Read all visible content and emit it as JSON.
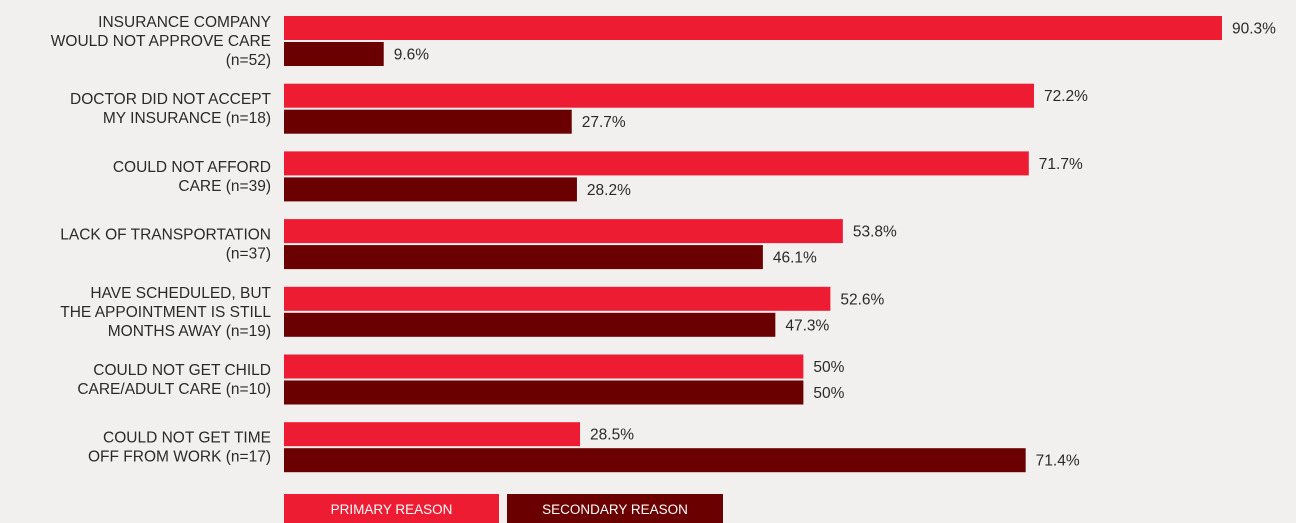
{
  "chart_data": {
    "type": "bar",
    "orientation": "horizontal",
    "categories": [
      [
        "INSURANCE COMPANY",
        "WOULD NOT APPROVE CARE",
        "(n=52)"
      ],
      [
        "DOCTOR DID NOT ACCEPT",
        "MY INSURANCE (n=18)"
      ],
      [
        "COULD NOT AFFORD",
        "CARE (n=39)"
      ],
      [
        "LACK OF TRANSPORTATION",
        "(n=37)"
      ],
      [
        "HAVE SCHEDULED, BUT",
        "THE APPOINTMENT IS STILL",
        "MONTHS AWAY (n=19)"
      ],
      [
        "COULD NOT GET CHILD",
        "CARE/ADULT CARE (n=10)"
      ],
      [
        "COULD NOT GET TIME",
        "OFF FROM WORK (n=17)"
      ]
    ],
    "series": [
      {
        "name": "PRIMARY REASON",
        "color": "#ee1c33",
        "values": [
          90.3,
          72.2,
          71.7,
          53.8,
          52.6,
          50,
          28.5
        ],
        "labels": [
          "90.3%",
          "72.2%",
          "71.7%",
          "53.8%",
          "52.6%",
          "50%",
          "28.5%"
        ]
      },
      {
        "name": "SECONDARY REASON",
        "color": "#6b0000",
        "values": [
          9.6,
          27.7,
          28.2,
          46.1,
          47.3,
          50,
          71.4
        ],
        "labels": [
          "9.6%",
          "27.7%",
          "28.2%",
          "46.1%",
          "47.3%",
          "50%",
          "71.4%"
        ]
      }
    ],
    "xlim": [
      0,
      100
    ],
    "grid": false,
    "legend": "bottom-left"
  }
}
